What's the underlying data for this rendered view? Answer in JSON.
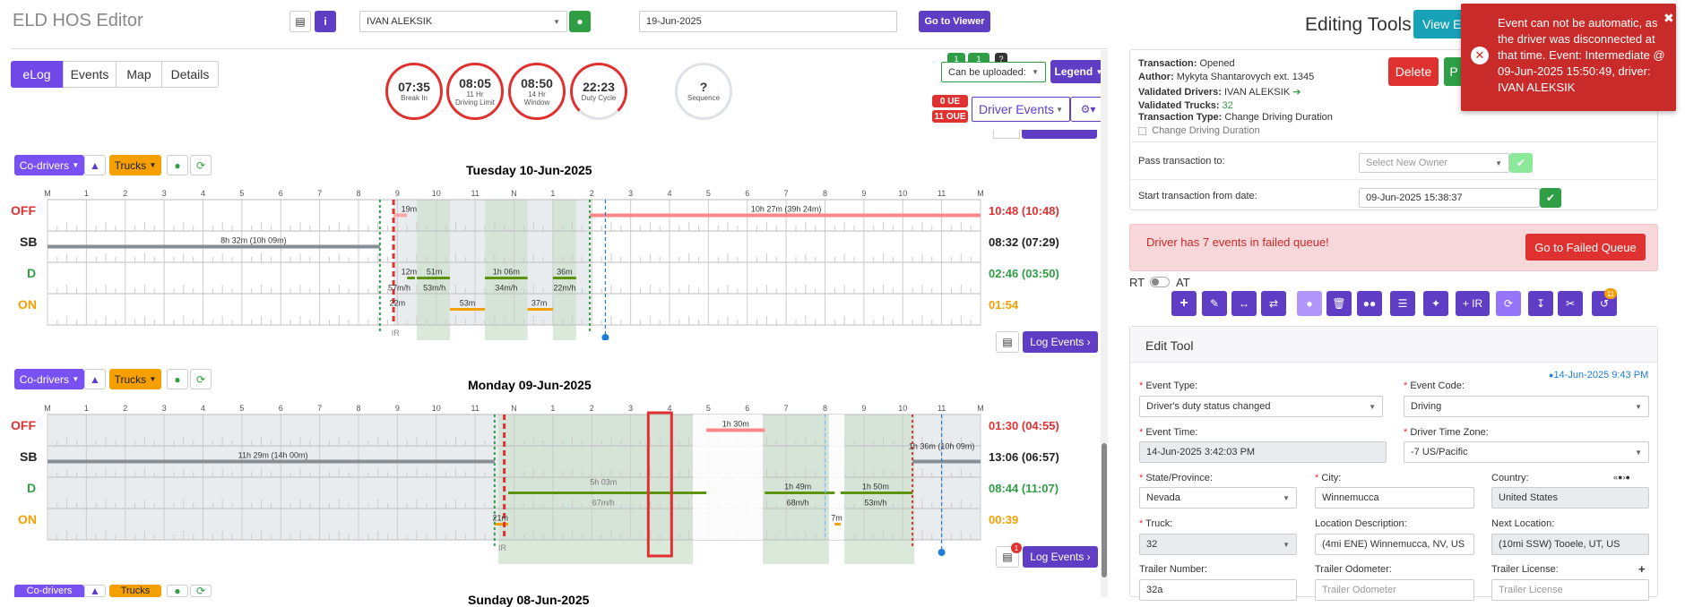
{
  "app": {
    "title": "ELD HOS Editor"
  },
  "header": {
    "driver": "IVAN ALEKSIK",
    "date": "19-Jun-2025",
    "go_viewer": "Go to Viewer"
  },
  "tabs": [
    "eLog",
    "Events",
    "Map",
    "Details"
  ],
  "gauges": [
    {
      "value": "07:35",
      "label": "Break In"
    },
    {
      "value": "08:05",
      "label": "11 Hr Driving Limit"
    },
    {
      "value": "08:50",
      "label": "14 Hr Window"
    },
    {
      "value": "22:23",
      "label": "Duty Cycle"
    },
    {
      "value": "?",
      "label": "Sequence"
    }
  ],
  "controls": {
    "can_upload": "Can be uploaded:",
    "legend": "Legend",
    "driver_events": "Driver Events",
    "badge_ue": "0 UE",
    "badge_oue": "11 OUE",
    "mini_badge1": "1",
    "mini_badge2": "1",
    "mini_q": "?"
  },
  "day_toolbar": {
    "codrivers": "Co-drivers",
    "trucks": "Trucks",
    "log_events": "Log Events"
  },
  "hours": [
    "M",
    "1",
    "2",
    "3",
    "4",
    "5",
    "6",
    "7",
    "8",
    "9",
    "10",
    "11",
    "N",
    "1",
    "2",
    "3",
    "4",
    "5",
    "6",
    "7",
    "8",
    "9",
    "10",
    "11",
    "M"
  ],
  "statuses": [
    "OFF",
    "SB",
    "D",
    "ON"
  ],
  "days": [
    {
      "title": "Tuesday 10-Jun-2025",
      "totals": [
        "10:48 (10:48)",
        "08:32 (07:29)",
        "02:46 (03:50)",
        "01:54"
      ],
      "labels": {
        "sb": "8h 32m (10h 09m)",
        "off1": "19m",
        "off2": "10h 27m (39h 24m)",
        "d1": "12m",
        "d1s": "57m/h",
        "d2": "51m",
        "d2s": "53m/h",
        "d3": "1h 06m",
        "d3s": "34m/h",
        "d4": "36m",
        "d4s": "22m/h",
        "on1": "22m",
        "on2": "53m",
        "on3": "37m",
        "ir": "IR"
      }
    },
    {
      "title": "Monday 09-Jun-2025",
      "totals": [
        "01:30 (04:55)",
        "13:06 (06:57)",
        "08:44 (11:07)",
        "00:39"
      ],
      "labels": {
        "sb1": "11h 29m (14h 00m)",
        "sb2": "1h 36m (10h 09m)",
        "off1": "1h 30m",
        "d1": "5h 03m",
        "d1s": "67m/h",
        "d2": "1h 49m",
        "d2s": "68m/h",
        "d3": "1h 50m",
        "d3s": "53m/h",
        "on1": "21m",
        "on2": "7m",
        "ir": "IR",
        "notif": "1"
      }
    }
  ],
  "next_day_title": "Sunday 08-Jun-2025",
  "editing": {
    "title": "Editing Tools",
    "view_btn": "View Ev",
    "transaction": "Opened",
    "author": "Mykyta Shantarovych ext. 1345",
    "validated_drivers": "IVAN ALEKSIK",
    "validated_trucks": "32",
    "transaction_type": "Change Driving Duration",
    "checkbox_label": "Change Driving Duration",
    "delete": "Delete",
    "p_btn": "P",
    "pass_to_label": "Pass transaction to:",
    "pass_to_placeholder": "Select New Owner",
    "start_label": "Start transaction from date:",
    "start_value": "09-Jun-2025 15:38:37",
    "failed_msg": "Driver has 7 events in failed queue!",
    "failed_btn": "Go to Failed Queue",
    "rt": "RT",
    "at": "AT",
    "ir_btn": "+ IR",
    "tool_badge": "11",
    "edit_tool": "Edit Tool",
    "timestamp": "14-Jun-2025 9:43 PM"
  },
  "form": {
    "event_type_label": "Event Type:",
    "event_type": "Driver's duty status changed",
    "event_code_label": "Event Code:",
    "event_code": "Driving",
    "event_time_label": "Event Time:",
    "event_time": "14-Jun-2025 3:42:03 PM",
    "tz_label": "Driver Time Zone:",
    "tz": "-7 US/Pacific",
    "state_label": "State/Province:",
    "state": "Nevada",
    "city_label": "City:",
    "city": "Winnemucca",
    "country_label": "Country:",
    "country": "United States",
    "truck_label": "Truck:",
    "truck": "32",
    "loc_desc_label": "Location Description:",
    "loc_desc": "(4mi ENE) Winnemucca, NV, US",
    "next_loc_label": "Next Location:",
    "next_loc": "(10mi SSW) Tooele, UT, US",
    "trailer_label": "Trailer Number:",
    "trailer": "32a",
    "trailer_odo_label": "Trailer Odometer:",
    "trailer_odo_ph": "Trailer Odometer",
    "trailer_lic_label": "Trailer License:",
    "trailer_lic_ph": "Trailer License"
  },
  "toast": {
    "message": "Event can not be automatic, as the driver was disconnected at that time. Event: Intermediate @ 09-Jun-2025 15:50:49, driver: IVAN ALEKSIK"
  },
  "colors": {
    "purple": "#5f3dc4",
    "red": "#e03131",
    "green": "#2f9e44",
    "orange": "#f59f00"
  }
}
